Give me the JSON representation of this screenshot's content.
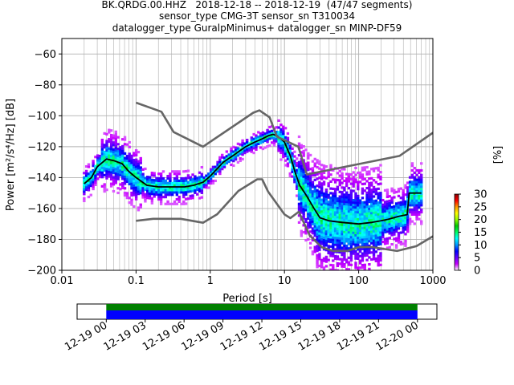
{
  "title_lines": [
    "BK.QRDG.00.HHZ   2018-12-18 -- 2018-12-19  (47/47 segments)",
    "sensor_type CMG-3T sensor_sn T310034",
    "datalogger_type GuralpMinimus+ datalogger_sn MINP-DF59"
  ],
  "chart_data": [
    {
      "type": "heatmap",
      "xlabel": "Period [s]",
      "ylabel": "Power [m²/s⁴/Hz] [dB]",
      "xscale": "log",
      "xlim": [
        0.01,
        1000
      ],
      "ylim": [
        -200,
        -50
      ],
      "xticks": [
        0.01,
        0.1,
        1,
        10,
        100,
        1000
      ],
      "xtick_labels": [
        "0.01",
        "0.1",
        "1",
        "10",
        "100",
        "1000"
      ],
      "yticks": [
        -200,
        -180,
        -160,
        -140,
        -120,
        -100,
        -80,
        -60
      ],
      "ytick_labels": [
        "−200",
        "−180",
        "−160",
        "−140",
        "−120",
        "−100",
        "−80",
        "−60"
      ],
      "grid": true,
      "colorbar": {
        "label": "[%]",
        "ticks": [
          0,
          5,
          10,
          15,
          20,
          25,
          30
        ],
        "range": [
          0,
          30
        ],
        "colormap": [
          "#ffffff",
          "#c800ff",
          "#6400ff",
          "#0000ff",
          "#0096ff",
          "#00ffff",
          "#00ff64",
          "#00c800",
          "#96ff00",
          "#ffff00",
          "#ff9600",
          "#ff0000",
          "#8b0000"
        ]
      },
      "series": [
        {
          "name": "mean",
          "role": "mean",
          "color": "#000000",
          "points": [
            [
              0.02,
              -144
            ],
            [
              0.025,
              -140
            ],
            [
              0.03,
              -133
            ],
            [
              0.04,
              -128
            ],
            [
              0.05,
              -129
            ],
            [
              0.065,
              -131
            ],
            [
              0.08,
              -136
            ],
            [
              0.1,
              -140
            ],
            [
              0.14,
              -145
            ],
            [
              0.2,
              -146
            ],
            [
              0.3,
              -146
            ],
            [
              0.45,
              -146
            ],
            [
              0.6,
              -145
            ],
            [
              0.8,
              -143
            ],
            [
              1.0,
              -139
            ],
            [
              1.5,
              -130
            ],
            [
              2,
              -126
            ],
            [
              3,
              -120
            ],
            [
              4,
              -117
            ],
            [
              5,
              -115
            ],
            [
              6,
              -113
            ],
            [
              7,
              -112
            ],
            [
              8,
              -113
            ],
            [
              10,
              -117
            ],
            [
              12,
              -126
            ],
            [
              14,
              -137
            ],
            [
              16,
              -145
            ],
            [
              20,
              -152
            ],
            [
              25,
              -160
            ],
            [
              30,
              -166
            ],
            [
              40,
              -168
            ],
            [
              60,
              -169
            ],
            [
              100,
              -170
            ],
            [
              150,
              -169
            ],
            [
              200,
              -168
            ],
            [
              250,
              -167
            ],
            [
              350,
              -165
            ],
            [
              450,
              -164
            ],
            [
              480,
              -150
            ],
            [
              700,
              -150
            ]
          ]
        },
        {
          "name": "high noise model",
          "role": "noise-model",
          "color": "#666666",
          "points": [
            [
              0.1,
              -91.5
            ],
            [
              0.22,
              -97.4
            ],
            [
              0.32,
              -110.5
            ],
            [
              0.8,
              -120
            ],
            [
              3.8,
              -98
            ],
            [
              4.6,
              -96.5
            ],
            [
              6.3,
              -101
            ],
            [
              7.9,
              -113.5
            ],
            [
              15.4,
              -120
            ],
            [
              20,
              -138
            ],
            [
              354.8,
              -126
            ],
            [
              1000,
              -111
            ]
          ]
        },
        {
          "name": "low noise model",
          "role": "noise-model",
          "color": "#666666",
          "points": [
            [
              0.1,
              -168
            ],
            [
              0.17,
              -166.7
            ],
            [
              0.4,
              -166.7
            ],
            [
              0.8,
              -169.2
            ],
            [
              1.24,
              -163.7
            ],
            [
              2.4,
              -148.6
            ],
            [
              4.3,
              -141.1
            ],
            [
              5.0,
              -141.1
            ],
            [
              6.0,
              -149
            ],
            [
              10.0,
              -163.8
            ],
            [
              12.0,
              -166.2
            ],
            [
              15.6,
              -162.1
            ],
            [
              21.9,
              -177.5
            ],
            [
              31.6,
              -185
            ],
            [
              45,
              -187.5
            ],
            [
              70,
              -187.5
            ],
            [
              101,
              -185
            ],
            [
              154,
              -185
            ],
            [
              328,
              -187.5
            ],
            [
              600,
              -184.4
            ],
            [
              1000,
              -178
            ]
          ]
        }
      ]
    },
    {
      "type": "timeline",
      "xtick_labels": [
        "12-19 00",
        "12-19 03",
        "12-19 06",
        "12-19 09",
        "12-19 12",
        "12-19 15",
        "12-19 18",
        "12-19 21",
        "12-20 00"
      ],
      "xlim": [
        "2018-12-18 21:45",
        "2018-12-20 01:30"
      ],
      "bars": [
        {
          "start": "2018-12-19 00:00",
          "end": "2018-12-20 00:00",
          "color": "#008000"
        },
        {
          "start": "2018-12-19 00:00",
          "end": "2018-12-20 00:00",
          "color": "#0000ff"
        }
      ]
    }
  ]
}
